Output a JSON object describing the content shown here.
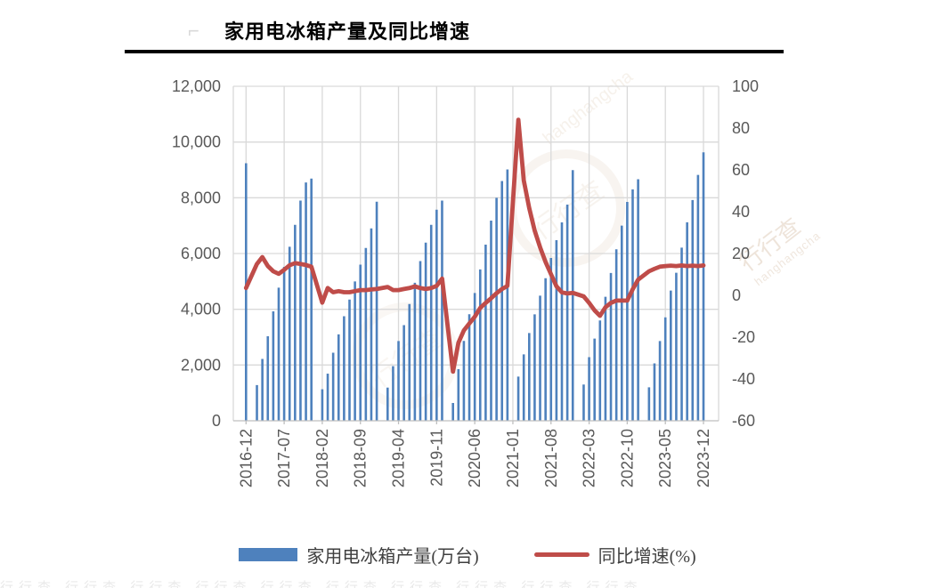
{
  "title": "家用电冰箱产量及同比增速",
  "title_mark": "⌐",
  "legend": {
    "bar_label": "家用电冰箱产量(万台)",
    "line_label": "同比增速(%)"
  },
  "colors": {
    "bar": "#4e81bd",
    "line": "#bf4c49",
    "gridline": "#d9d9d9",
    "axis_line": "#bfbfbf",
    "tick_text": "#595959"
  },
  "watermark": {
    "text": "行行查",
    "subtext": "hanghangcha",
    "bottom_strip": "行行查 行行查 行行查 行行查 行行查 行行查 行行查 行行查 行行查 行行查"
  },
  "chart_data": {
    "type": "combo-bar-line",
    "title": "家用电冰箱产量及同比增速",
    "x": [
      "2016-12",
      "2017-01",
      "2017-02",
      "2017-03",
      "2017-04",
      "2017-05",
      "2017-06",
      "2017-07",
      "2017-08",
      "2017-09",
      "2017-10",
      "2017-11",
      "2017-12",
      "2018-01",
      "2018-02",
      "2018-03",
      "2018-04",
      "2018-05",
      "2018-06",
      "2018-07",
      "2018-08",
      "2018-09",
      "2018-10",
      "2018-11",
      "2018-12",
      "2019-01",
      "2019-02",
      "2019-03",
      "2019-04",
      "2019-05",
      "2019-06",
      "2019-07",
      "2019-08",
      "2019-09",
      "2019-10",
      "2019-11",
      "2019-12",
      "2020-01",
      "2020-02",
      "2020-03",
      "2020-04",
      "2020-05",
      "2020-06",
      "2020-07",
      "2020-08",
      "2020-09",
      "2020-10",
      "2020-11",
      "2020-12",
      "2021-01",
      "2021-02",
      "2021-03",
      "2021-04",
      "2021-05",
      "2021-06",
      "2021-07",
      "2021-08",
      "2021-09",
      "2021-10",
      "2021-11",
      "2021-12",
      "2022-01",
      "2022-02",
      "2022-03",
      "2022-04",
      "2022-05",
      "2022-06",
      "2022-07",
      "2022-08",
      "2022-09",
      "2022-10",
      "2022-11",
      "2022-12",
      "2023-01",
      "2023-02",
      "2023-03",
      "2023-04",
      "2023-05",
      "2023-06",
      "2023-07",
      "2023-08",
      "2023-09",
      "2023-10",
      "2023-11",
      "2023-12"
    ],
    "x_tick_shown": [
      "2016-12",
      "2017-07",
      "2018-02",
      "2018-09",
      "2019-04",
      "2019-11",
      "2020-06",
      "2021-01",
      "2021-08",
      "2022-03",
      "2022-10",
      "2023-05",
      "2023-12"
    ],
    "series": [
      {
        "name": "家用电冰箱产量(万台)",
        "type": "bar",
        "axis": "left",
        "values": [
          9238,
          null,
          1280,
          2220,
          3030,
          3925,
          4777,
          5520,
          6245,
          7030,
          7900,
          8550,
          8690,
          null,
          1130,
          1690,
          2440,
          3100,
          3750,
          4350,
          5000,
          5600,
          6200,
          6900,
          7860,
          null,
          1190,
          1960,
          2860,
          3430,
          4190,
          4950,
          5730,
          6390,
          7030,
          7570,
          7900,
          null,
          638,
          1853,
          2864,
          3820,
          4585,
          5430,
          6320,
          7180,
          8000,
          8600,
          9015,
          null,
          1585,
          2383,
          3149,
          3819,
          4489,
          5116,
          5840,
          6478,
          7117,
          7755,
          8992,
          null,
          1300,
          2280,
          2950,
          3600,
          4450,
          5300,
          6150,
          7000,
          7850,
          8300,
          8664,
          null,
          1200,
          2060,
          2860,
          3710,
          4670,
          5310,
          6210,
          7120,
          7920,
          8820,
          9632
        ]
      },
      {
        "name": "同比增速(%)",
        "type": "line",
        "axis": "right",
        "values": [
          3.5,
          null,
          15,
          18.3,
          14,
          11.5,
          10.3,
          12.2,
          14.4,
          15.4,
          15,
          14.5,
          13.7,
          null,
          -3.5,
          3.5,
          1.5,
          2,
          1.5,
          1.5,
          2,
          2.5,
          2.5,
          2.8,
          3,
          null,
          4,
          2.5,
          2.5,
          3,
          3.5,
          4.3,
          3.5,
          3,
          3.5,
          4.5,
          8,
          null,
          -36.5,
          -22.7,
          -16.8,
          -13.5,
          -10.2,
          -6,
          -3.6,
          -1.4,
          1,
          3,
          4.5,
          null,
          84,
          55,
          41.8,
          31,
          23,
          15.9,
          10.1,
          4.3,
          1.4,
          0.9,
          1.2,
          null,
          -0.5,
          -3.6,
          -7.2,
          -9.8,
          -5.7,
          -3.6,
          -2.5,
          -2.5,
          -2.5,
          2.9,
          7.5,
          null,
          11.5,
          12.7,
          13.7,
          14,
          14.2,
          14,
          14.3,
          14,
          14.2,
          14,
          14.3
        ]
      }
    ],
    "left_axis": {
      "min": 0,
      "max": 12000,
      "step": 2000,
      "tick_labels": [
        "0",
        "2,000",
        "4,000",
        "6,000",
        "8,000",
        "10,000",
        "12,000"
      ]
    },
    "right_axis": {
      "min": -60,
      "max": 100,
      "step": 20,
      "tick_labels": [
        "-60",
        "-40",
        "-20",
        "0",
        "20",
        "40",
        "60",
        "80",
        "100"
      ]
    },
    "grid": true,
    "legend_position": "bottom"
  }
}
